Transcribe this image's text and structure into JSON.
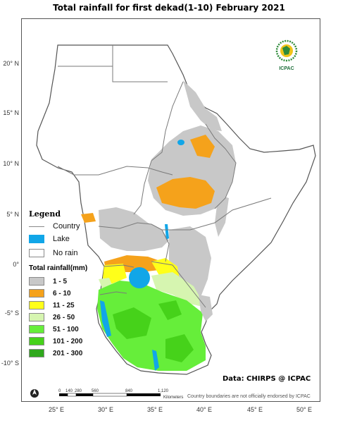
{
  "title": "Total rainfall for  first  dekad(1-10)  February 2021",
  "lat_labels": [
    "20° N",
    "15° N",
    "10° N",
    "5° N",
    "0°",
    "-5° S",
    "-10° S"
  ],
  "lon_labels": [
    "25° E",
    "30° E",
    "35° E",
    "40° E",
    "45° E",
    "50° E"
  ],
  "legend": {
    "heading": "Legend",
    "country_label": "Country",
    "lake_label": "Lake",
    "norain_label": "No rain",
    "rain_heading": "Total rainfall(mm)",
    "classes": [
      {
        "label": "1 - 5",
        "color": "#c8c8c8"
      },
      {
        "label": "6 - 10",
        "color": "#f5a21b"
      },
      {
        "label": "11 - 25",
        "color": "#ffff1a"
      },
      {
        "label": "26 - 50",
        "color": "#d6f5b0"
      },
      {
        "label": "51 - 100",
        "color": "#66ee3a"
      },
      {
        "label": "101 - 200",
        "color": "#46d21a"
      },
      {
        "label": "201 - 300",
        "color": "#2fa81c"
      }
    ],
    "lake_color": "#11a6e8",
    "border_color": "#888888"
  },
  "logo": {
    "name": "IGAD",
    "org": "ICPAC"
  },
  "data_credit": "Data: CHIRPS @ ICPAC",
  "disclaimer": "Country boundaries are not officially endorsed by ICPAC",
  "scale": {
    "unit": "Kilometers",
    "ticks": [
      "0",
      "140",
      "280",
      "560",
      "840",
      "1,120"
    ]
  }
}
